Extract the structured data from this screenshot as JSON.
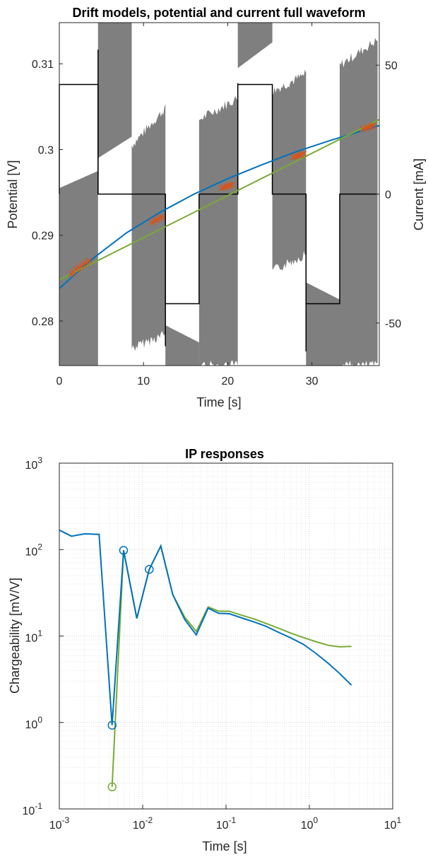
{
  "chart_data": [
    {
      "type": "line",
      "title": "Drift models, potential and current full waveform",
      "xlabel": "Time [s]",
      "ylabel": "Potential [V]",
      "ylabel_right": "Current [mA]",
      "xlim": [
        0,
        38
      ],
      "ylim": [
        0.2748,
        0.3148
      ],
      "ylim_right": [
        -66.5,
        66.5
      ],
      "xticks": [
        0,
        10,
        20,
        30
      ],
      "yticks": [
        0.28,
        0.29,
        0.3,
        0.31
      ],
      "yticks_right": [
        -50,
        0,
        50
      ],
      "grid": false,
      "colors": {
        "potential": "#7f7f7f",
        "current": "#000000",
        "model_a": "#0072bd",
        "model_b": "#77ac30",
        "samples": "#d95319"
      },
      "current_waveform": {
        "x": [
          0,
          0,
          4.6,
          4.6,
          8.6,
          8.6,
          12.6,
          12.6,
          16.6,
          16.6,
          21.2,
          21.2,
          25.3,
          25.3,
          29.3,
          29.3,
          33.3,
          33.3,
          37.8
        ],
        "y": [
          0,
          42.5,
          42.5,
          0,
          0,
          0,
          0,
          -42.5,
          -42.5,
          0,
          0,
          42.5,
          42.5,
          0,
          0,
          -42.5,
          -42.5,
          0,
          0
        ]
      },
      "current_spikes": {
        "x": [
          4.6,
          12.6,
          21.2,
          29.3
        ],
        "y": [
          56,
          -59,
          43,
          -61
        ]
      },
      "potential_segments": [
        {
          "t0": 0,
          "t1": 4.6,
          "upper": [
            0.2955,
            0.2975
          ],
          "lower": [
            0.2748,
            0.2748
          ],
          "solid": true
        },
        {
          "t0": 4.6,
          "t1": 8.6,
          "upper": [
            0.3148,
            0.3148
          ],
          "lower": [
            0.299,
            0.3015
          ],
          "solid": true
        },
        {
          "t0": 8.6,
          "t1": 12.6,
          "upper": [
            0.3005,
            0.3048
          ],
          "lower": [
            0.2768,
            0.2785
          ],
          "solid": false
        },
        {
          "t0": 12.6,
          "t1": 16.6,
          "upper": [
            0.2795,
            0.2775
          ],
          "lower": [
            0.2748,
            0.2748
          ],
          "solid": true
        },
        {
          "t0": 16.6,
          "t1": 21.2,
          "upper": [
            0.3035,
            0.306
          ],
          "lower": [
            0.2748,
            0.2748
          ],
          "solid": false
        },
        {
          "t0": 21.2,
          "t1": 25.3,
          "upper": [
            0.3148,
            0.3148
          ],
          "lower": [
            0.3095,
            0.3125
          ],
          "solid": true
        },
        {
          "t0": 25.3,
          "t1": 29.3,
          "upper": [
            0.3068,
            0.3088
          ],
          "lower": [
            0.2858,
            0.2878
          ],
          "solid": false
        },
        {
          "t0": 29.3,
          "t1": 33.3,
          "upper": [
            0.2845,
            0.2825
          ],
          "lower": [
            0.2748,
            0.2748
          ],
          "solid": true
        },
        {
          "t0": 33.3,
          "t1": 37.8,
          "upper": [
            0.3098,
            0.3128
          ],
          "lower": [
            0.2748,
            0.2748
          ],
          "solid": false
        }
      ],
      "series": [
        {
          "x": [
            0,
            4,
            8,
            12,
            16,
            20,
            24,
            28,
            32,
            36,
            38
          ],
          "y": [
            0.2838,
            0.2873,
            0.2903,
            0.2927,
            0.2948,
            0.2966,
            0.2982,
            0.2997,
            0.301,
            0.3022,
            0.3028
          ]
        },
        {
          "x": [
            0,
            38
          ],
          "y": [
            0.2848,
            0.3035
          ]
        }
      ],
      "sample_points": {
        "x": [
          1.4,
          1.7,
          2.0,
          2.3,
          2.6,
          2.9,
          3.2,
          3.5,
          11.0,
          11.3,
          11.6,
          11.9,
          12.2,
          19.3,
          19.6,
          19.9,
          20.2,
          20.5,
          27.8,
          28.1,
          28.4,
          28.7,
          29.0,
          36.1,
          36.4,
          36.7,
          37.0,
          37.3
        ],
        "y": [
          0.2855,
          0.2857,
          0.286,
          0.2862,
          0.2864,
          0.2866,
          0.2868,
          0.287,
          0.2915,
          0.2917,
          0.2918,
          0.292,
          0.2921,
          0.2955,
          0.2956,
          0.2957,
          0.2958,
          0.2959,
          0.2991,
          0.2992,
          0.2993,
          0.2994,
          0.2995,
          0.3024,
          0.3025,
          0.3026,
          0.3027,
          0.3028
        ]
      }
    },
    {
      "type": "line",
      "title": "IP responses",
      "xlabel": "Time [s]",
      "ylabel": "Chargeability [mV/V]",
      "xscale": "log",
      "yscale": "log",
      "xlim": [
        0.001,
        10
      ],
      "ylim": [
        0.1,
        1000
      ],
      "grid": true,
      "colors": {
        "a": "#0072bd",
        "b": "#77ac30"
      },
      "x_tick_labels": [
        {
          "base": "10",
          "exp": "-3"
        },
        {
          "base": "10",
          "exp": "-2"
        },
        {
          "base": "10",
          "exp": "-1"
        },
        {
          "base": "10",
          "exp": "0"
        },
        {
          "base": "10",
          "exp": "1"
        }
      ],
      "y_tick_labels": [
        {
          "base": "10",
          "exp": "-1"
        },
        {
          "base": "10",
          "exp": "0"
        },
        {
          "base": "10",
          "exp": "1"
        },
        {
          "base": "10",
          "exp": "2"
        },
        {
          "base": "10",
          "exp": "3"
        }
      ],
      "series": [
        {
          "x": [
            0.001,
            0.0014,
            0.002,
            0.003,
            0.0043,
            0.0059,
            0.0085,
            0.012,
            0.0165,
            0.023,
            0.032,
            0.044,
            0.061,
            0.082,
            0.11,
            0.16,
            0.22,
            0.3,
            0.43,
            0.6,
            0.85,
            1.2,
            1.7,
            2.3,
            3.2
          ],
          "y": [
            168,
            143,
            152,
            150,
            0.93,
            98,
            16,
            59,
            110,
            30,
            15.5,
            10.3,
            21,
            18.3,
            18.1,
            16,
            14.5,
            13,
            11,
            9.5,
            8,
            6.3,
            4.8,
            3.7,
            2.7
          ]
        },
        {
          "x": [
            0.0043,
            0.0059,
            0.0085,
            0.012,
            0.0165,
            0.023,
            0.032,
            0.044,
            0.061,
            0.082,
            0.11,
            0.16,
            0.22,
            0.3,
            0.43,
            0.6,
            0.85,
            1.2,
            1.7,
            2.3,
            3.2
          ],
          "y": [
            0.18,
            98,
            16,
            59,
            110,
            30,
            16.5,
            11.3,
            21.7,
            19.4,
            19.3,
            17.2,
            15.7,
            14,
            12.3,
            10.8,
            9.6,
            8.6,
            7.8,
            7.5,
            7.6
          ]
        }
      ],
      "markers": [
        {
          "series": 0,
          "x": 0.0043,
          "y": 0.93
        },
        {
          "series": 0,
          "x": 0.0059,
          "y": 98
        },
        {
          "series": 0,
          "x": 0.012,
          "y": 59
        },
        {
          "series": 1,
          "x": 0.0043,
          "y": 0.18
        }
      ]
    }
  ]
}
